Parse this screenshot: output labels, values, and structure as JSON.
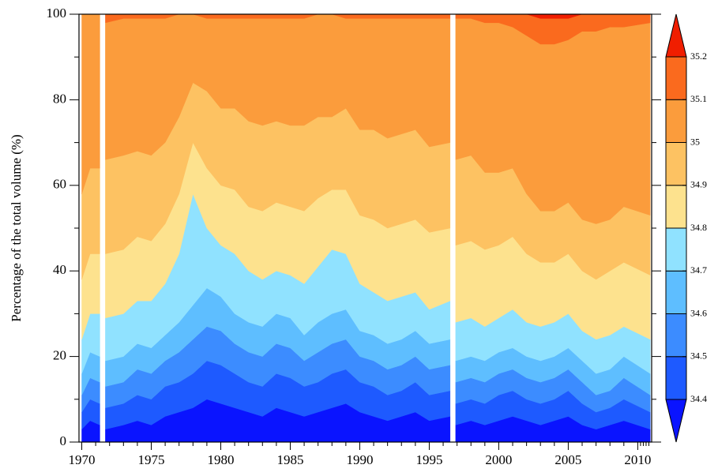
{
  "chart_data": {
    "type": "stacked_area",
    "y_label": "Percentage of the total volume (%)",
    "x": [
      1970,
      1970.6,
      1971.3,
      1971.5,
      1971.7,
      1973,
      1974,
      1975,
      1976,
      1977,
      1978,
      1979,
      1980,
      1981,
      1982,
      1983,
      1984,
      1985,
      1986,
      1987,
      1988,
      1989,
      1990,
      1991,
      1992,
      1993,
      1994,
      1995,
      1996.5,
      1996.7,
      1996.9,
      1998,
      1999,
      2000,
      2001,
      2002,
      2003,
      2004,
      2005,
      2006,
      2007,
      2008,
      2009,
      2010.9
    ],
    "xlim": [
      1969.8,
      2011
    ],
    "xticks": [
      1970,
      1975,
      1980,
      1985,
      1990,
      1995,
      2000,
      2005,
      2010
    ],
    "ylim": [
      0,
      100
    ],
    "yticks": [
      0,
      20,
      40,
      60,
      80,
      100
    ],
    "series": [
      {
        "color": "#0a14ff",
        "values": [
          3,
          5,
          4,
          null,
          3,
          4,
          5,
          4,
          6,
          7,
          8,
          10,
          9,
          8,
          7,
          6,
          8,
          7,
          6,
          7,
          8,
          9,
          7,
          6,
          5,
          6,
          7,
          5,
          6,
          null,
          4,
          5,
          4,
          5,
          6,
          5,
          4,
          5,
          6,
          4,
          3,
          4,
          5,
          3
        ]
      },
      {
        "color": "#1e5aff",
        "values": [
          4,
          5,
          5,
          null,
          5,
          5,
          6,
          6,
          7,
          7,
          8,
          9,
          9,
          8,
          7,
          7,
          8,
          8,
          7,
          7,
          8,
          8,
          7,
          7,
          6,
          6,
          7,
          6,
          6,
          null,
          5,
          5,
          5,
          6,
          6,
          5,
          5,
          5,
          6,
          5,
          4,
          4,
          5,
          4
        ]
      },
      {
        "color": "#3c8cff",
        "values": [
          4,
          5,
          5,
          null,
          5,
          5,
          6,
          6,
          6,
          7,
          8,
          8,
          8,
          7,
          7,
          7,
          7,
          7,
          6,
          7,
          7,
          7,
          6,
          6,
          6,
          6,
          6,
          6,
          6,
          null,
          5,
          5,
          5,
          5,
          5,
          5,
          5,
          5,
          5,
          5,
          4,
          4,
          5,
          4
        ]
      },
      {
        "color": "#5ebeff",
        "values": [
          5,
          6,
          6,
          null,
          6,
          6,
          6,
          6,
          6,
          7,
          8,
          9,
          8,
          7,
          7,
          7,
          7,
          7,
          6,
          7,
          7,
          7,
          6,
          6,
          6,
          6,
          6,
          6,
          6,
          null,
          5,
          5,
          5,
          5,
          5,
          5,
          5,
          5,
          5,
          5,
          5,
          5,
          5,
          5
        ]
      },
      {
        "color": "#90e2ff",
        "values": [
          8,
          9,
          10,
          null,
          10,
          10,
          10,
          11,
          12,
          16,
          26,
          14,
          12,
          14,
          12,
          11,
          10,
          10,
          12,
          13,
          15,
          13,
          11,
          10,
          10,
          10,
          9,
          8,
          9,
          null,
          9,
          9,
          8,
          8,
          9,
          8,
          8,
          8,
          8,
          7,
          8,
          8,
          7,
          8
        ]
      },
      {
        "color": "#fde28e",
        "values": [
          14,
          14,
          14,
          null,
          15,
          15,
          15,
          14,
          14,
          14,
          12,
          14,
          14,
          15,
          15,
          16,
          16,
          16,
          17,
          16,
          14,
          15,
          16,
          17,
          17,
          17,
          17,
          18,
          17,
          null,
          18,
          18,
          18,
          17,
          17,
          16,
          15,
          14,
          14,
          14,
          14,
          15,
          15,
          15
        ]
      },
      {
        "color": "#fdc262",
        "values": [
          20,
          20,
          20,
          null,
          22,
          22,
          20,
          20,
          19,
          18,
          14,
          18,
          18,
          19,
          20,
          20,
          19,
          19,
          20,
          19,
          17,
          19,
          20,
          21,
          21,
          21,
          21,
          20,
          20,
          null,
          20,
          20,
          18,
          17,
          16,
          14,
          12,
          12,
          12,
          12,
          13,
          12,
          13,
          14
        ]
      },
      {
        "color": "#fb9c3c",
        "values": [
          42,
          36,
          36,
          null,
          32,
          32,
          31,
          32,
          29,
          24,
          16,
          17,
          21,
          21,
          24,
          25,
          24,
          25,
          25,
          24,
          24,
          21,
          26,
          26,
          28,
          27,
          26,
          30,
          29,
          null,
          33,
          32,
          35,
          35,
          33,
          37,
          39,
          39,
          38,
          44,
          45,
          45,
          42,
          45
        ]
      },
      {
        "color": "#fa6a1e",
        "values": [
          0,
          0,
          0,
          null,
          2,
          1,
          1,
          1,
          1,
          0,
          0,
          1,
          1,
          1,
          1,
          1,
          1,
          1,
          1,
          0,
          0,
          1,
          1,
          1,
          1,
          1,
          1,
          1,
          1,
          null,
          1,
          1,
          2,
          2,
          3,
          5,
          6,
          6,
          5,
          4,
          4,
          3,
          3,
          2
        ]
      },
      {
        "color": "#f01e00",
        "values": [
          0,
          0,
          0,
          null,
          0,
          0,
          0,
          0,
          0,
          0,
          0,
          0,
          0,
          0,
          0,
          0,
          0,
          0,
          0,
          0,
          0,
          0,
          0,
          0,
          0,
          0,
          0,
          0,
          0,
          null,
          0,
          0,
          0,
          0,
          0,
          0,
          1,
          1,
          1,
          0,
          0,
          0,
          0,
          0
        ]
      }
    ],
    "colorbar": {
      "levels": [
        34.4,
        34.5,
        34.6,
        34.7,
        34.8,
        34.9,
        35,
        35.1,
        35.2
      ]
    }
  }
}
